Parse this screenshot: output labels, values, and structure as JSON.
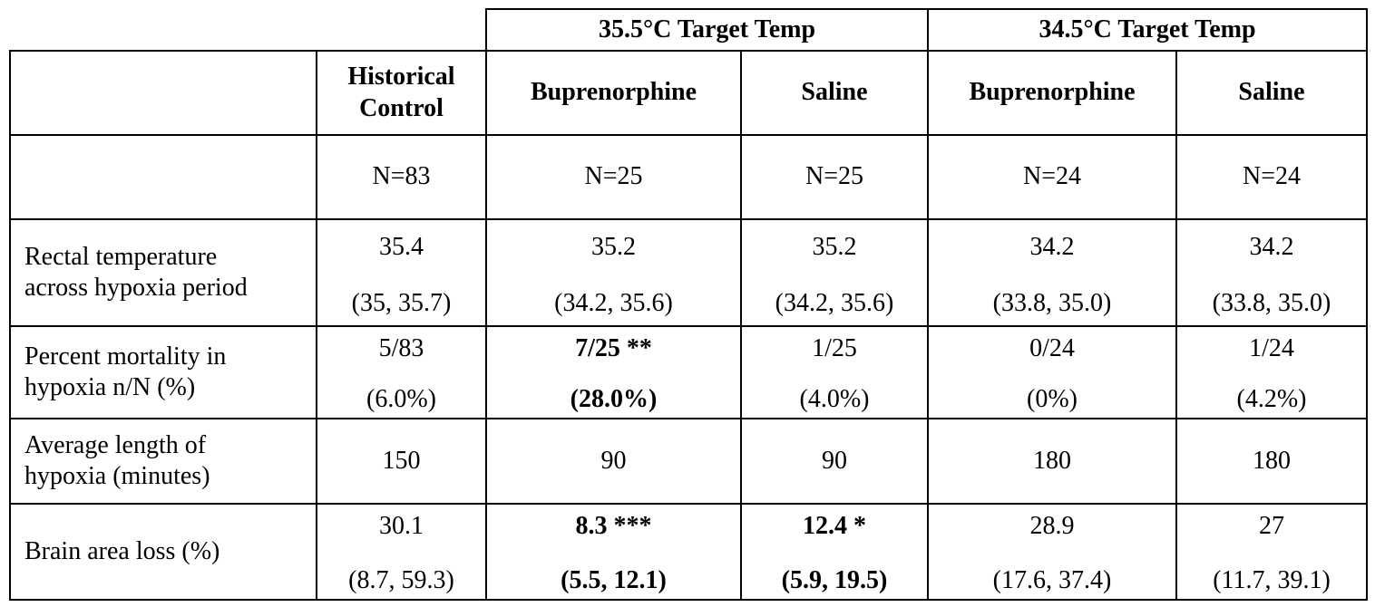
{
  "groups": [
    {
      "label": "35.5°C Target Temp"
    },
    {
      "label": "34.5°C Target Temp"
    }
  ],
  "columns": [
    {
      "label": "Historical Control",
      "line1": "Historical",
      "line2": "Control"
    },
    {
      "label": "Buprenorphine"
    },
    {
      "label": "Saline"
    },
    {
      "label": "Buprenorphine"
    },
    {
      "label": "Saline"
    }
  ],
  "n_row": [
    "N=83",
    "N=25",
    "N=25",
    "N=24",
    "N=24"
  ],
  "rows": [
    {
      "label_line1": "Rectal temperature",
      "label_line2": "across hypoxia period",
      "cells": [
        {
          "line1": "35.4",
          "line2": "(35, 35.7)",
          "bold": false
        },
        {
          "line1": "35.2",
          "line2": "(34.2, 35.6)",
          "bold": false
        },
        {
          "line1": "35.2",
          "line2": "(34.2, 35.6)",
          "bold": false
        },
        {
          "line1": "34.2",
          "line2": "(33.8, 35.0)",
          "bold": false
        },
        {
          "line1": "34.2",
          "line2": "(33.8, 35.0)",
          "bold": false
        }
      ]
    },
    {
      "label_line1": "Percent mortality in",
      "label_line2": "hypoxia n/N (%)",
      "cells": [
        {
          "line1": "5/83",
          "line2": "(6.0%)",
          "bold": false
        },
        {
          "line1": "7/25 **",
          "line2": "(28.0%)",
          "bold": true
        },
        {
          "line1": "1/25",
          "line2": "(4.0%)",
          "bold": false
        },
        {
          "line1": "0/24",
          "line2": "(0%)",
          "bold": false
        },
        {
          "line1": "1/24",
          "line2": "(4.2%)",
          "bold": false
        }
      ]
    },
    {
      "label_line1": "Average length of",
      "label_line2": "hypoxia (minutes)",
      "cells": [
        {
          "line1": "150"
        },
        {
          "line1": "90"
        },
        {
          "line1": "90"
        },
        {
          "line1": "180"
        },
        {
          "line1": "180"
        }
      ]
    },
    {
      "label_line1": "Brain area loss (%)",
      "cells": [
        {
          "line1": "30.1",
          "line2": "(8.7, 59.3)",
          "bold": false
        },
        {
          "line1": "8.3 ***",
          "line2": "(5.5, 12.1)",
          "bold": true
        },
        {
          "line1": "12.4 *",
          "line2": "(5.9, 19.5)",
          "bold": true
        },
        {
          "line1": "28.9",
          "line2": "(17.6, 37.4)",
          "bold": false
        },
        {
          "line1": "27",
          "line2": "(11.7, 39.1)",
          "bold": false
        }
      ]
    }
  ]
}
